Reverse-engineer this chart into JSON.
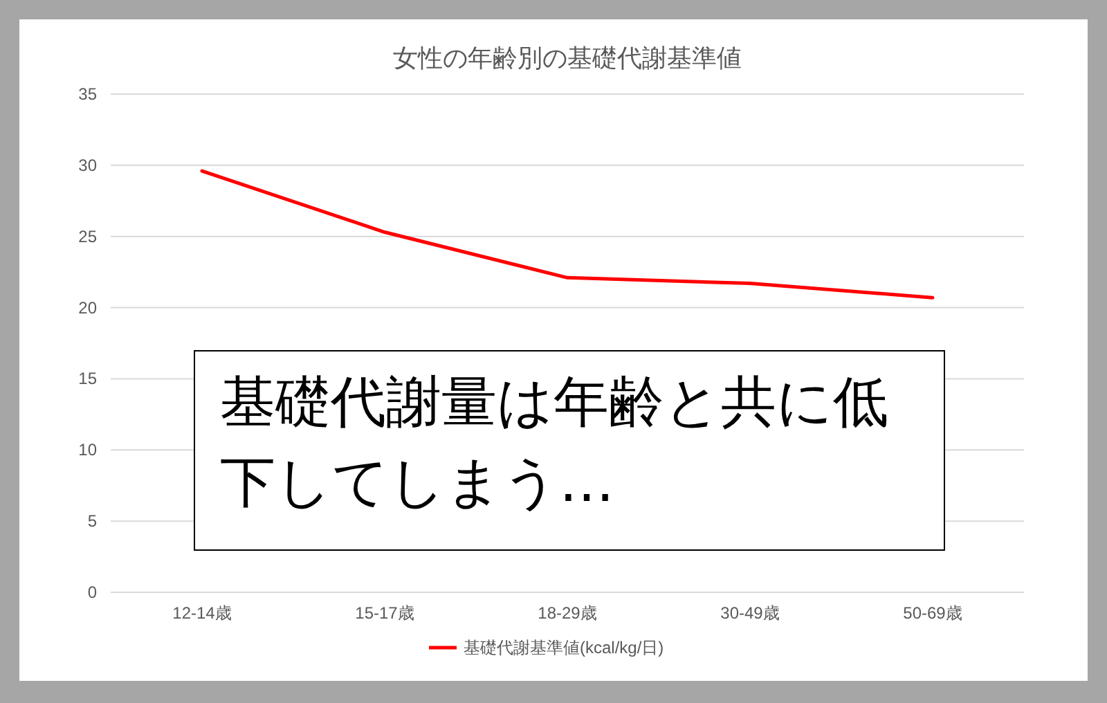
{
  "chart_data": {
    "type": "line",
    "title": "女性の年齢別の基礎代謝基準値",
    "categories": [
      "12-14歳",
      "15-17歳",
      "18-29歳",
      "30-49歳",
      "50-69歳"
    ],
    "series": [
      {
        "name": "基礎代謝基準値(kcal/kg/日)",
        "color": "#ff0000",
        "values": [
          29.6,
          25.3,
          22.1,
          21.7,
          20.7
        ]
      }
    ],
    "ylim": [
      0,
      35
    ],
    "yticks": [
      0,
      5,
      10,
      15,
      20,
      25,
      30,
      35
    ],
    "grid": "y",
    "legend": "bottom",
    "marker": "none",
    "line_style": "solid",
    "annotations": [
      "基礎代謝量は年齢と共に低下してしまう…"
    ]
  }
}
